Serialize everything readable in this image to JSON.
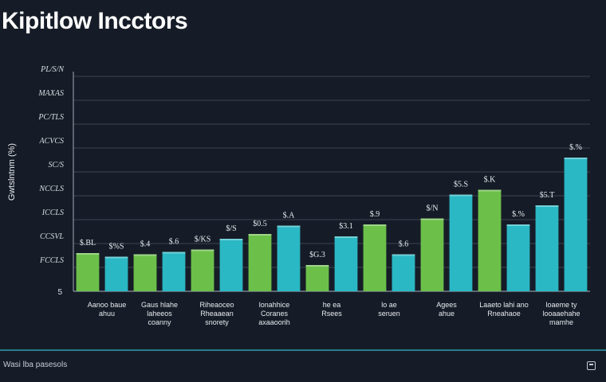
{
  "title": "Kipitlow Incctors",
  "footer": {
    "text": "Wasi lba pasesols",
    "icon": "window-icon"
  },
  "colors": {
    "background": "#161c27",
    "green": "#6cc04a",
    "teal": "#2ab8c4",
    "grid": "#3a4352",
    "text": "#e6e9ee"
  },
  "chart_data": {
    "type": "bar",
    "title": "Kipitlow Incctors",
    "ylabel": "Gwtslntnm (%)",
    "yticks": [
      "PL/S/N",
      "MAXAS",
      "PC/TLS",
      "ACVCS",
      "SC/S",
      "NCCLS",
      "ICCLS",
      "CCSVL",
      "FCCLS"
    ],
    "ylim": [
      0,
      9
    ],
    "grid": true,
    "categories": [
      [
        "Aanoo baue",
        "ahuu"
      ],
      [
        "Gaus hlahe",
        "laheeos",
        "coanny"
      ],
      [
        "Riheaoceo",
        "Rheaaean",
        "snorety"
      ],
      [
        "lonahhice",
        "Coranes",
        "axaaoorih"
      ],
      [
        "he ea",
        "Rsees"
      ],
      [
        "lo ae",
        "seruen"
      ],
      [
        "Agees",
        "ahue"
      ],
      [
        "Laaeto lahi ano",
        "Rneahaoe"
      ],
      [
        "loaeme ty",
        "looaaehahe",
        "mamhe"
      ]
    ],
    "series": [
      {
        "color": "#6cc04a",
        "values": [
          1.6,
          1.55,
          1.75,
          2.4,
          1.1,
          2.8,
          3.05,
          4.25
        ],
        "labels": [
          "$.BL",
          "$.4",
          "$/KS",
          "$0.5",
          "$G.3",
          "$.9",
          "$/N",
          "$.K"
        ],
        "x": [
          0,
          1,
          2,
          3,
          4,
          5,
          6,
          7
        ]
      },
      {
        "color": "#2ab8c4",
        "values": [
          1.45,
          1.65,
          2.2,
          2.75,
          2.3,
          1.55,
          4.05,
          2.8,
          3.6,
          5.6
        ],
        "labels": [
          "$%S",
          "$.6",
          "$/S",
          "$.A",
          "$3.1",
          "$.6",
          "$5.S",
          "$.%",
          "$5.T",
          "$.%"
        ],
        "x": [
          0,
          1,
          2,
          3,
          4,
          5,
          6,
          7,
          8,
          9
        ]
      }
    ],
    "bar_order": [
      "green",
      "teal",
      "green",
      "teal",
      "green",
      "teal",
      "green",
      "teal",
      "green",
      "teal",
      "green",
      "teal",
      "green",
      "teal",
      "green",
      "teal",
      "green",
      "teal"
    ]
  }
}
